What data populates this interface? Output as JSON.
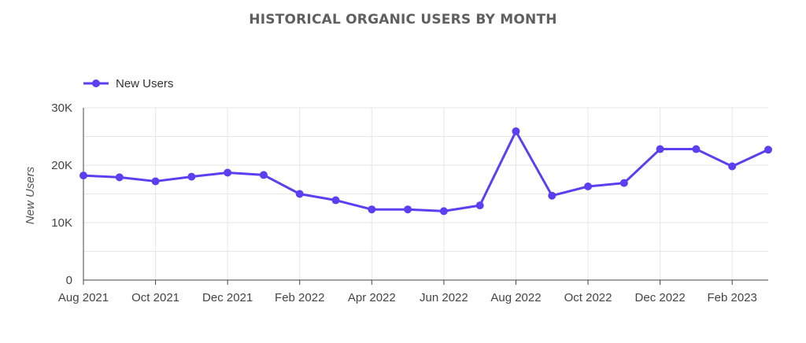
{
  "chart_data": {
    "type": "line",
    "title": "HISTORICAL ORGANIC USERS BY MONTH",
    "ylabel": "New Users",
    "xlabel": "",
    "legend": "top-left",
    "grid": true,
    "ylim": [
      0,
      30000
    ],
    "y_ticks": [
      {
        "value": 0,
        "label": "0"
      },
      {
        "value": 10000,
        "label": "10K"
      },
      {
        "value": 20000,
        "label": "20K"
      },
      {
        "value": 30000,
        "label": "30K"
      }
    ],
    "x": [
      "Aug 2021",
      "Sep 2021",
      "Oct 2021",
      "Nov 2021",
      "Dec 2021",
      "Jan 2022",
      "Feb 2022",
      "Mar 2022",
      "Apr 2022",
      "May 2022",
      "Jun 2022",
      "Jul 2022",
      "Aug 2022",
      "Sep 2022",
      "Oct 2022",
      "Nov 2022",
      "Dec 2022",
      "Jan 2023",
      "Feb 2023",
      "Mar 2023"
    ],
    "x_tick_labels": [
      "Aug 2021",
      "Oct 2021",
      "Dec 2021",
      "Feb 2022",
      "Apr 2022",
      "Jun 2022",
      "Aug 2022",
      "Oct 2022",
      "Dec 2022",
      "Feb 2023"
    ],
    "series": [
      {
        "name": "New Users",
        "color": "#5b3ff0",
        "values": [
          18200,
          17900,
          17200,
          18000,
          18700,
          18300,
          15000,
          13900,
          12300,
          12300,
          12000,
          13000,
          25900,
          14700,
          16300,
          16900,
          22800,
          22800,
          19800,
          22700
        ]
      }
    ]
  }
}
